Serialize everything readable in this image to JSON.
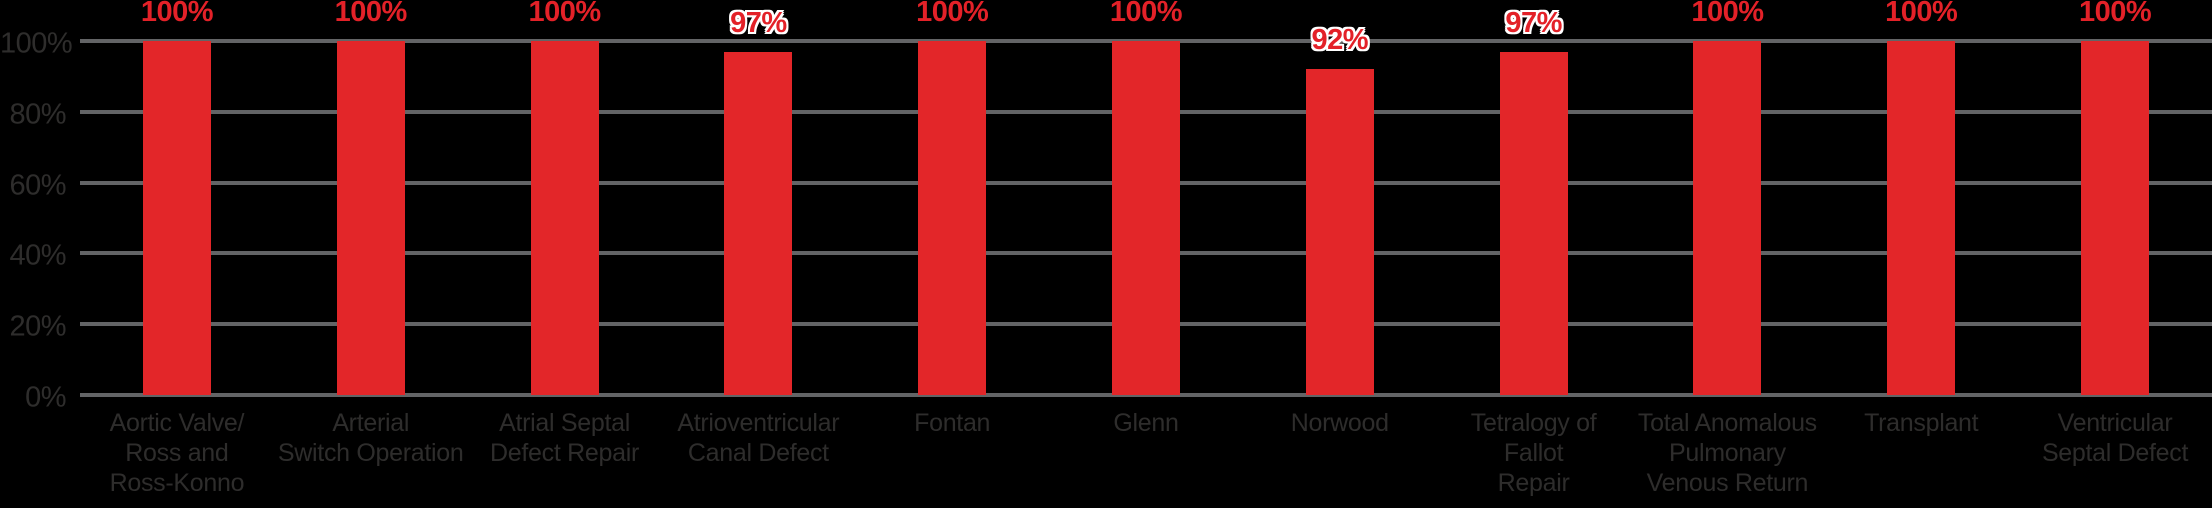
{
  "chart_data": {
    "type": "bar",
    "title": "",
    "xlabel": "",
    "ylabel": "",
    "ylim": [
      0,
      100
    ],
    "grid": "horizontal",
    "legend": null,
    "categories": [
      "Aortic Valve/ Ross and Ross-Konno",
      "Arterial Switch Operation",
      "Atrial Septal Defect Repair",
      "Atrioventricular Canal Defect",
      "Fontan",
      "Glenn",
      "Norwood",
      "Tetralogy of Fallot Repair",
      "Total Anomalous Pulmonary Venous Return",
      "Transplant",
      "Ventricular Septal Defect"
    ],
    "category_lines": [
      [
        "Aortic Valve/",
        "Ross and",
        "Ross-Konno"
      ],
      [
        "Arterial",
        "Switch Operation"
      ],
      [
        "Atrial Septal",
        "Defect Repair"
      ],
      [
        "Atrioventricular",
        "Canal Defect"
      ],
      [
        "Fontan"
      ],
      [
        "Glenn"
      ],
      [
        "Norwood"
      ],
      [
        "Tetralogy of",
        "Fallot",
        "Repair"
      ],
      [
        "Total Anomalous",
        "Pulmonary",
        "Venous Return"
      ],
      [
        "Transplant"
      ],
      [
        "Ventricular",
        "Septal Defect"
      ]
    ],
    "values": [
      100,
      100,
      100,
      97,
      100,
      100,
      92,
      97,
      100,
      100,
      100
    ],
    "value_labels": [
      "100%",
      "100%",
      "100%",
      "97%",
      "100%",
      "100%",
      "92%",
      "97%",
      "100%",
      "100%",
      "100%"
    ],
    "y_ticks": [
      {
        "label": "100%",
        "value": 100
      },
      {
        "label": "80%",
        "value": 80
      },
      {
        "label": "60%",
        "value": 60
      },
      {
        "label": "40%",
        "value": 40
      },
      {
        "label": "20%",
        "value": 20
      },
      {
        "label": "0%",
        "value": 0
      }
    ],
    "colors": {
      "background": "#000000",
      "bar": "#E32629",
      "value_label": "#E32128",
      "value_label_halo": "#FFFFFF",
      "axis_text": "#2E2D2C",
      "gridline": "#636466"
    }
  }
}
